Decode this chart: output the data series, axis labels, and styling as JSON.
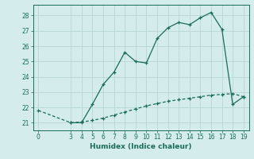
{
  "xlabel": "Humidex (Indice chaleur)",
  "bg_color": "#d4edec",
  "grid_color": "#b8d8d5",
  "line_color": "#1a6b5a",
  "xlim": [
    -0.5,
    19.5
  ],
  "ylim": [
    20.5,
    28.7
  ],
  "xticks": [
    0,
    3,
    4,
    5,
    6,
    7,
    8,
    9,
    10,
    11,
    12,
    13,
    14,
    15,
    16,
    17,
    18,
    19
  ],
  "yticks": [
    21,
    22,
    23,
    24,
    25,
    26,
    27,
    28
  ],
  "line1_x": [
    3,
    4,
    5,
    6,
    7,
    8,
    9,
    10,
    11,
    12,
    13,
    14,
    15,
    16,
    17,
    18,
    19
  ],
  "line1_y": [
    21.0,
    21.0,
    22.2,
    23.5,
    24.3,
    25.6,
    25.0,
    24.9,
    26.5,
    27.2,
    27.55,
    27.4,
    27.85,
    28.2,
    27.1,
    22.2,
    22.7
  ],
  "line2_x": [
    0,
    3,
    4,
    5,
    6,
    7,
    8,
    9,
    10,
    11,
    12,
    13,
    14,
    15,
    16,
    17,
    18,
    19
  ],
  "line2_y": [
    21.8,
    21.0,
    21.05,
    21.15,
    21.3,
    21.5,
    21.7,
    21.9,
    22.1,
    22.25,
    22.4,
    22.5,
    22.6,
    22.7,
    22.8,
    22.85,
    22.9,
    22.7
  ]
}
